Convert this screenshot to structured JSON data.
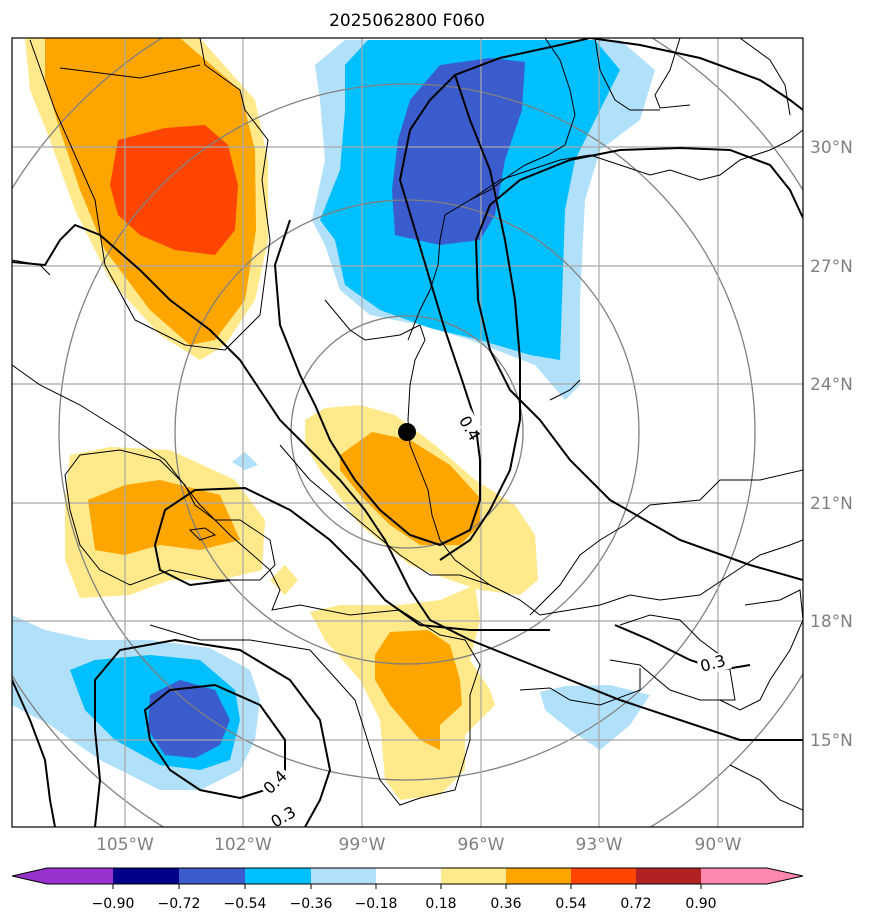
{
  "title": "2025062800 F060",
  "longitude_labels": [
    "105°W",
    "102°W",
    "99°W",
    "96°W",
    "93°W",
    "90°W"
  ],
  "latitude_labels": [
    "30°N",
    "27°N",
    "24°N",
    "21°N",
    "18°N",
    "15°N"
  ],
  "colorbar": {
    "labels": [
      "−0.90",
      "−0.72",
      "−0.54",
      "−0.36",
      "−0.18",
      "0.18",
      "0.36",
      "0.54",
      "0.72",
      "0.90"
    ],
    "colors": [
      "#9932cc",
      "#00008b",
      "#3a5ccd",
      "#00bfff",
      "#b0e0fa",
      "#ffffff",
      "#ffe98a",
      "#ffa500",
      "#ff4500",
      "#b22222",
      "#ff88b0"
    ]
  },
  "contour_labels": [
    "0.4",
    "0.3",
    "0.4",
    "0.3"
  ],
  "fill_colors": {
    "light_yellow": "#ffe98a",
    "orange": "#ffa500",
    "red_orange": "#ff4500",
    "light_blue": "#b0e0fa",
    "deep_sky_blue": "#00bfff",
    "royal_blue": "#3a5ccd"
  },
  "storm_marker": "storm-center-dot"
}
